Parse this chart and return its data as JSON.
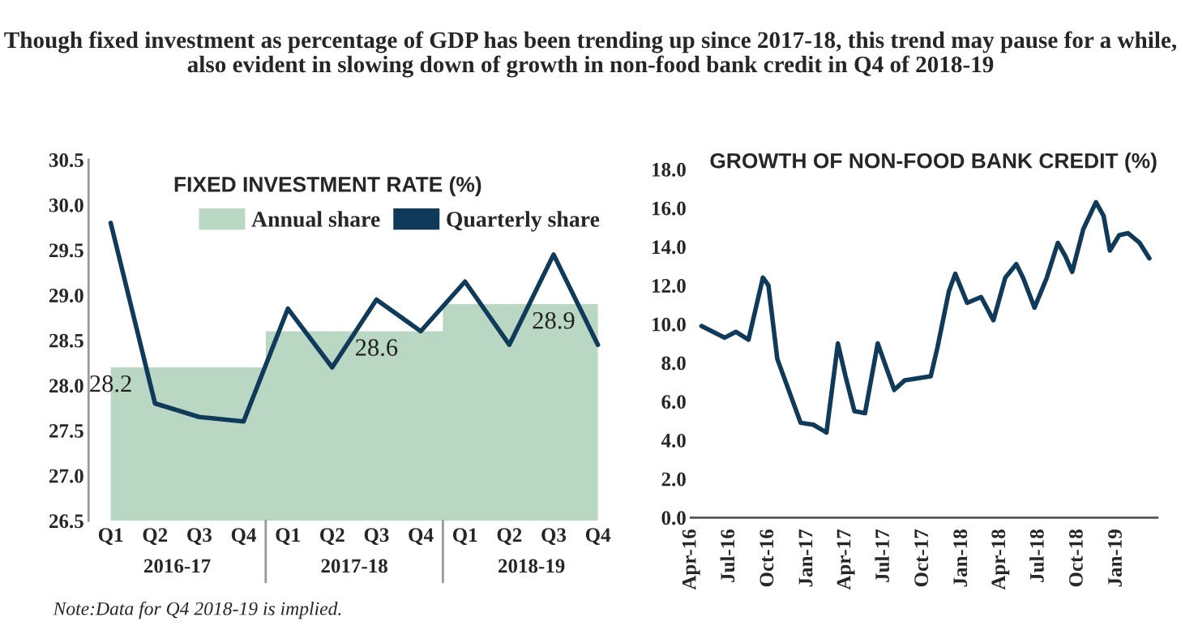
{
  "chart_data": [
    {
      "type": "bar",
      "title": "FIXED INVESTMENT RATE (%)",
      "categories": [
        "Q1",
        "Q2",
        "Q3",
        "Q4",
        "Q1",
        "Q2",
        "Q3",
        "Q4",
        "Q1",
        "Q2",
        "Q3",
        "Q4"
      ],
      "series": [
        {
          "name": "Annual share",
          "type": "area",
          "color": "#b9d7c3",
          "values": [
            28.2,
            28.2,
            28.2,
            28.2,
            28.6,
            28.6,
            28.6,
            28.6,
            28.9,
            28.9,
            28.9,
            28.9
          ],
          "value_labels": [
            null,
            "28.2",
            null,
            null,
            null,
            "28.6",
            null,
            null,
            null,
            null,
            "28.9",
            null
          ]
        },
        {
          "name": "Quarterly share",
          "type": "line",
          "color": "#0f3a5a",
          "values": [
            29.8,
            27.8,
            27.65,
            27.6,
            28.85,
            28.2,
            28.95,
            28.6,
            29.15,
            28.45,
            29.45,
            28.45
          ]
        }
      ],
      "ylim": [
        26.5,
        30.5
      ],
      "yticks": [
        26.5,
        {
          "value": 27,
          "label": "27.0"
        },
        27.5,
        {
          "value": 28,
          "label": "28.0"
        },
        28.5,
        {
          "value": 29,
          "label": "29.0"
        },
        29.5,
        {
          "value": 30,
          "label": "30.0"
        },
        30.5
      ],
      "legend": "top right",
      "annotations": [
        "2016-17",
        "2017-18",
        "2018-19",
        "Note:Data for Q4 2018-19 is implied."
      ]
    },
    {
      "type": "line",
      "title": "GROWTH OF NON-FOOD BANK CREDIT (%)",
      "x": [
        "2016-04-26",
        "2016-06-20",
        "2016-07-16",
        "2016-08-15",
        "2016-09-18",
        "2016-10-01",
        "2016-10-22",
        "2016-12-16",
        "2017-01-15",
        "2017-02-15",
        "2017-03-14",
        "2017-04-01",
        "2017-04-22",
        "2017-05-17",
        "2017-06-16",
        "2017-07-07",
        "2017-07-25",
        "2017-08-19",
        "2017-10-19",
        "2017-11-04",
        "2017-12-01",
        "2017-12-16",
        "2018-01-13",
        "2018-02-15",
        "2018-03-16",
        "2018-04-13",
        "2018-05-09",
        "2018-05-25",
        "2018-06-21",
        "2018-07-20",
        "2018-08-15",
        "2018-09-02",
        "2018-09-18",
        "2018-10-14",
        "2018-11-13",
        "2018-12-01",
        "2018-12-16",
        "2019-01-07",
        "2019-01-28",
        "2019-02-24",
        "2019-03-19"
      ],
      "series": [
        {
          "color": "#0f3a5a",
          "values": [
            9.9,
            9.3,
            9.6,
            9.2,
            12.4,
            12.0,
            8.2,
            4.9,
            4.8,
            4.4,
            9.0,
            7.3,
            5.5,
            5.4,
            9.0,
            7.7,
            6.6,
            7.1,
            7.3,
            8.8,
            11.7,
            12.6,
            11.1,
            11.4,
            10.2,
            12.4,
            13.1,
            12.4,
            10.85,
            12.4,
            14.2,
            13.5,
            12.7,
            14.9,
            16.3,
            15.6,
            13.8,
            14.6,
            14.7,
            14.2,
            13.4
          ]
        }
      ],
      "xlim": [
        "2016-04-01",
        "2019-04-07"
      ],
      "xticks": [
        {
          "value": "2016-04-01",
          "label": "Apr-16"
        },
        {
          "value": "2016-07-01",
          "label": "Jul-16"
        },
        {
          "value": "2016-10-01",
          "label": "Oct-16"
        },
        {
          "value": "2017-01-01",
          "label": "Jan-17"
        },
        {
          "value": "2017-04-01",
          "label": "Apr-17"
        },
        {
          "value": "2017-07-01",
          "label": "Jul-17"
        },
        {
          "value": "2017-10-01",
          "label": "Oct-17"
        },
        {
          "value": "2018-01-01",
          "label": "Jan-18"
        },
        {
          "value": "2018-04-01",
          "label": "Apr-18"
        },
        {
          "value": "2018-07-01",
          "label": "Jul-18"
        },
        {
          "value": "2018-10-01",
          "label": "Oct-18"
        },
        {
          "value": "2019-01-01",
          "label": "Jan-19"
        }
      ],
      "ylim": [
        0,
        18
      ],
      "yticks": [
        {
          "value": 0,
          "label": "0.0"
        },
        {
          "value": 2,
          "label": "2.0"
        },
        {
          "value": 4,
          "label": "4.0"
        },
        {
          "value": 6,
          "label": "6.0"
        },
        {
          "value": 8,
          "label": "8.0"
        },
        {
          "value": 10,
          "label": "10.0"
        },
        {
          "value": 12,
          "label": "12.0"
        },
        {
          "value": 14,
          "label": "14.0"
        },
        {
          "value": 16,
          "label": "16.0"
        },
        {
          "value": 18,
          "label": "18.0"
        }
      ]
    },
    {
      "type": "other",
      "title": "Though fixed investment as percentage of GDP has been trending up since 2017-18, this trend may pause for a while, also evident in slowing down of growth in non-food bank credit in Q4 of 2018-19"
    }
  ]
}
